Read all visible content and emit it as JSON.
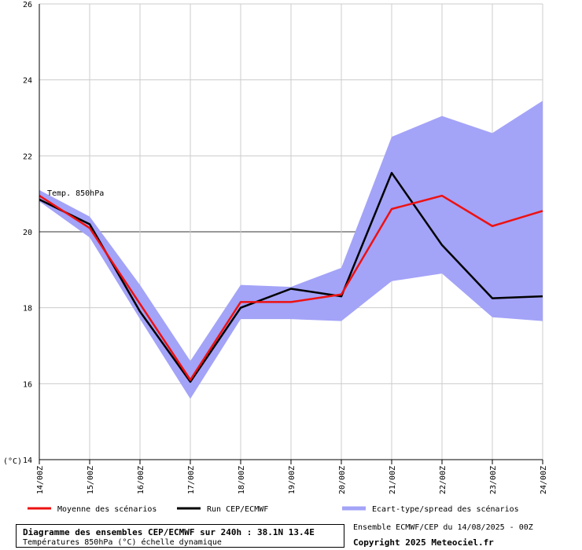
{
  "chart_data": {
    "type": "line",
    "x": [
      "14/00Z",
      "15/00Z",
      "16/00Z",
      "17/00Z",
      "18/00Z",
      "19/00Z",
      "20/00Z",
      "21/00Z",
      "22/00Z",
      "23/00Z",
      "24/00Z"
    ],
    "ylim": [
      14,
      26
    ],
    "yticks": [
      14,
      16,
      18,
      20,
      22,
      24,
      26
    ],
    "yunit_label": "(°C)",
    "plot_label": "Temp. 850hPa",
    "grid": true,
    "highlight_line": 20,
    "band": {
      "name": "Ecart-type/spread des scénarios",
      "color": "#a3a3f8",
      "upper": [
        21.1,
        20.4,
        18.6,
        16.6,
        18.6,
        18.55,
        19.05,
        22.5,
        23.05,
        22.6,
        23.45
      ],
      "lower": [
        20.8,
        19.85,
        17.7,
        15.6,
        17.7,
        17.7,
        17.65,
        18.7,
        18.9,
        17.75,
        17.65
      ]
    },
    "series": [
      {
        "name": "Moyenne des scénarios",
        "color": "#ee1111",
        "values": [
          20.95,
          20.1,
          18.1,
          16.1,
          18.15,
          18.15,
          18.35,
          20.6,
          20.95,
          20.15,
          20.55
        ]
      },
      {
        "name": "Run CEP/ECMWF",
        "color": "#000000",
        "values": [
          20.85,
          20.2,
          17.9,
          16.05,
          18.0,
          18.5,
          18.3,
          21.55,
          19.65,
          18.25,
          18.3
        ]
      }
    ],
    "legend_position": "bottom"
  },
  "info": {
    "title": "Diagramme des ensembles CEP/ECMWF sur 240h : 38.1N 13.4E",
    "subtitle": "Températures 850hPa (°C) échelle dynamique",
    "ensemble_note": "Ensemble ECMWF/CEP du 14/08/2025 - 00Z",
    "copyright": "Copyright 2025 Meteociel.fr"
  }
}
